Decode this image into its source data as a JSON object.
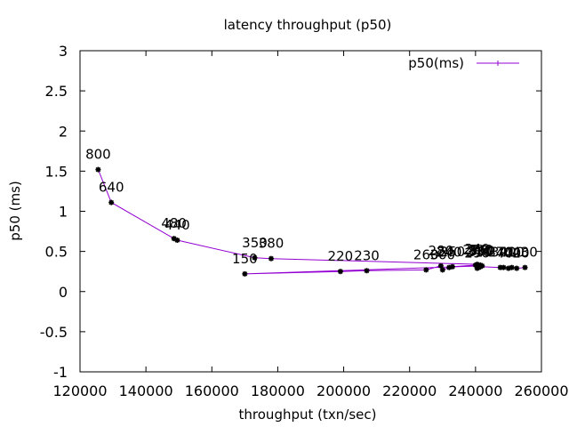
{
  "chart_data": {
    "type": "line",
    "title": "latency throughput (p50)",
    "xlabel": "throughput (txn/sec)",
    "ylabel": "p50 (ms)",
    "xlim": [
      120000,
      260000
    ],
    "ylim": [
      -1,
      3
    ],
    "xticks": [
      120000,
      140000,
      160000,
      180000,
      200000,
      220000,
      240000,
      260000
    ],
    "yticks": [
      -1,
      -0.5,
      0,
      0.5,
      1,
      1.5,
      2,
      2.5,
      3
    ],
    "xtick_labels": [
      "120000",
      "140000",
      "160000",
      "180000",
      "200000",
      "220000",
      "240000",
      "260000"
    ],
    "ytick_labels": [
      "-1",
      "-0.5",
      "0",
      "0.5",
      "1",
      "1.5",
      "2",
      "2.5",
      "3"
    ],
    "legend_position": "top-right",
    "grid": false,
    "series": [
      {
        "name": "p50(ms)",
        "color": "#9400d3",
        "marker_color": "#000000",
        "x": [
          125500,
          129500,
          148500,
          149500,
          173000,
          178000,
          240500,
          241500,
          242000,
          170000,
          199000,
          207000,
          225000,
          229500,
          230000,
          232000,
          233000,
          240000,
          240500,
          241000,
          241500,
          247500,
          248500,
          250000,
          251000,
          252500,
          255000
        ],
        "y": [
          1.52,
          1.11,
          0.66,
          0.64,
          0.42,
          0.41,
          0.34,
          0.33,
          0.32,
          0.22,
          0.25,
          0.26,
          0.27,
          0.32,
          0.27,
          0.3,
          0.31,
          0.33,
          0.29,
          0.3,
          0.31,
          0.3,
          0.3,
          0.29,
          0.3,
          0.29,
          0.3
        ],
        "labels": [
          "800",
          "640",
          "480",
          "440",
          "350",
          "380",
          "340",
          "320",
          "360",
          "150",
          "220",
          "230",
          "260",
          "280",
          "300",
          "240",
          "250",
          "270",
          "290",
          "310",
          "330",
          "370",
          "390",
          "400",
          "410",
          "420",
          "430"
        ]
      }
    ]
  }
}
